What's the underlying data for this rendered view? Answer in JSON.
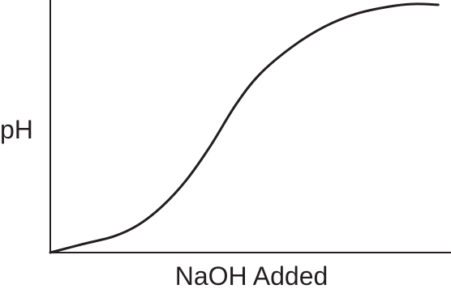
{
  "chart_data": {
    "type": "line",
    "x_label": "NaOH Added",
    "y_label": "pH",
    "x": [
      0,
      7.7,
      15.8,
      21.9,
      27.9,
      34,
      40,
      46.2,
      52.2,
      60.3,
      68.4,
      76.5,
      84.6,
      90.7,
      96.8
    ],
    "values": [
      0,
      3.2,
      6.4,
      10.9,
      18.3,
      28.8,
      42.3,
      58.3,
      70.5,
      81.4,
      89.4,
      94.6,
      97.4,
      98.4,
      98.1
    ],
    "color": "#231f20",
    "xlim": [
      0,
      100
    ],
    "ylim": [
      0,
      100
    ]
  }
}
